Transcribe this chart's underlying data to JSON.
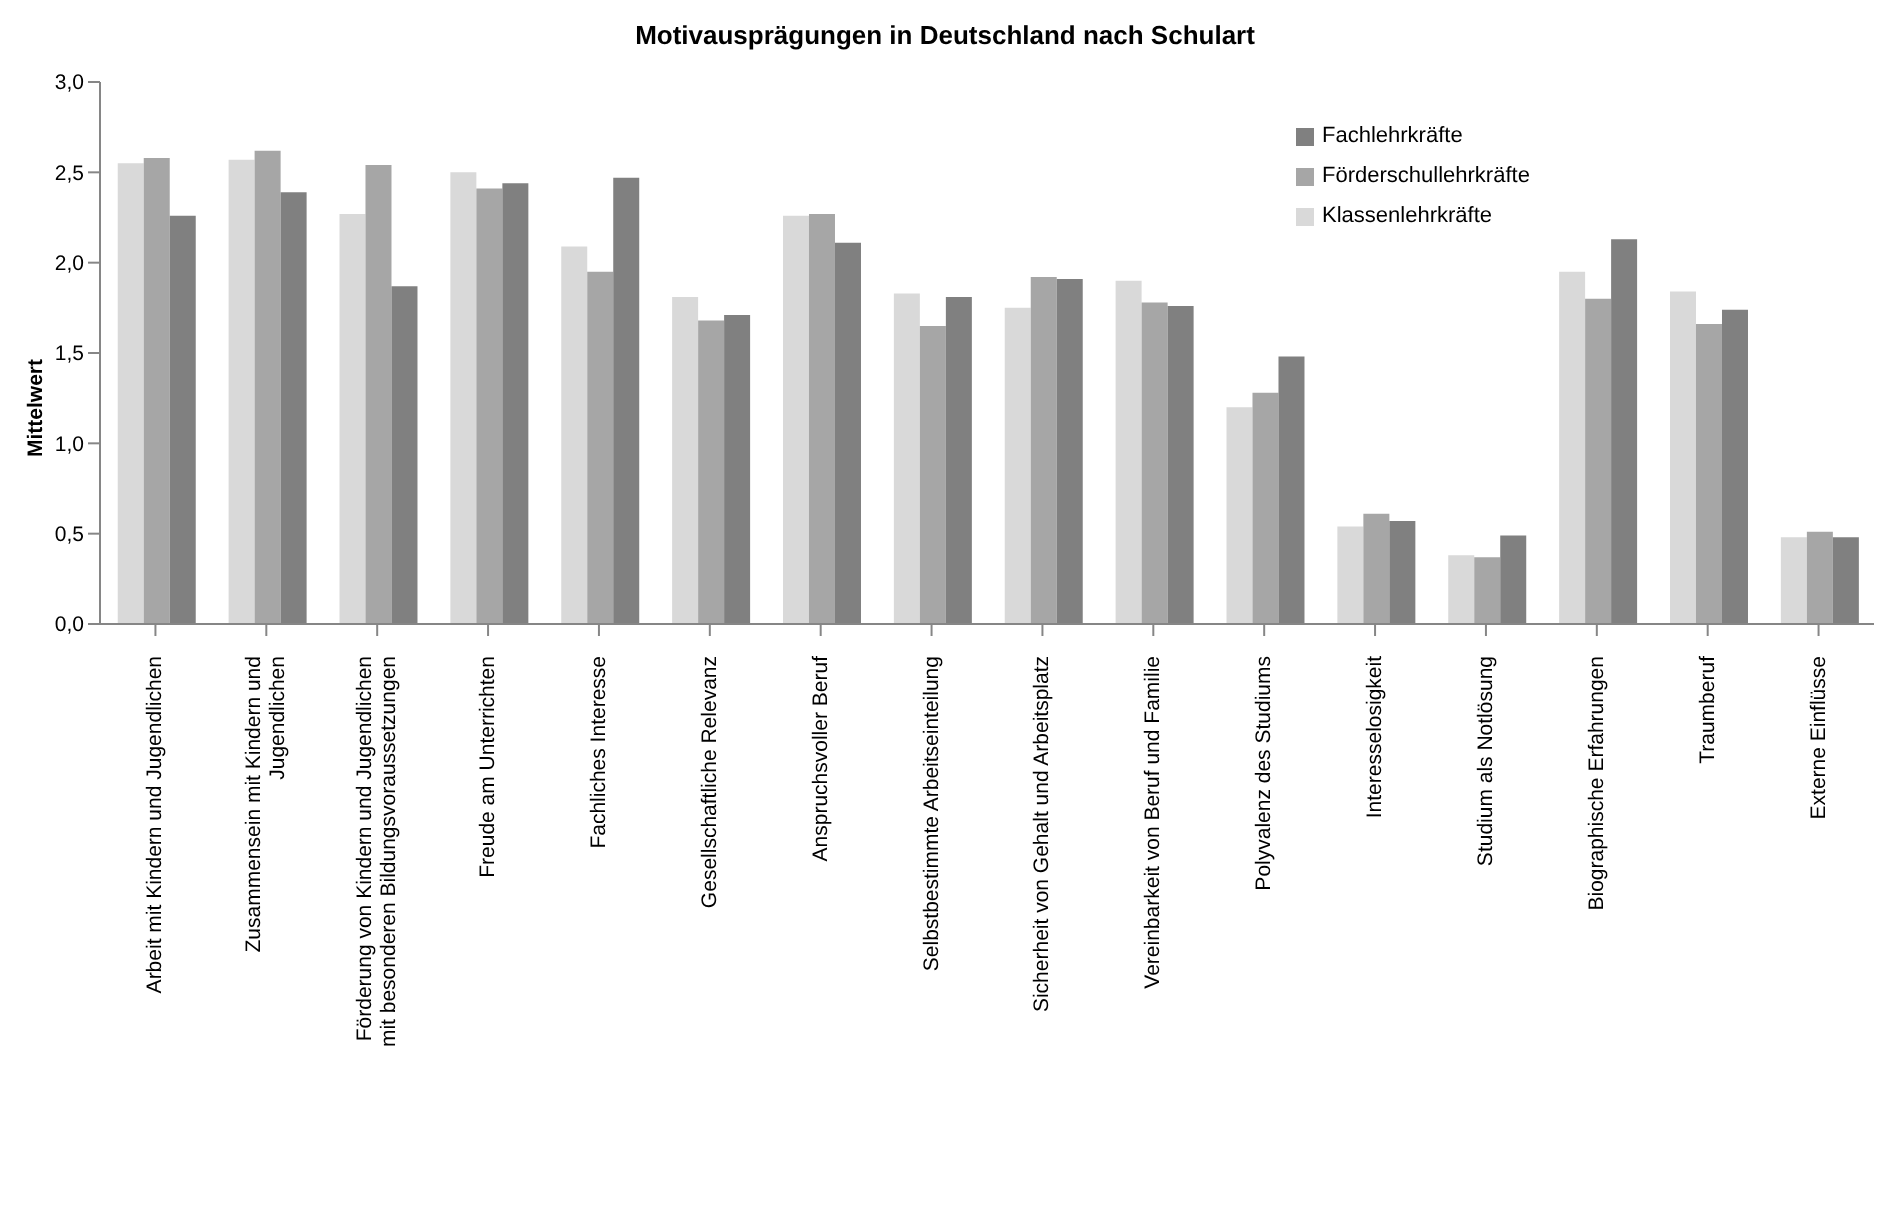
{
  "chart_data": {
    "type": "bar",
    "title": "Motivausprägungen in Deutschland nach Schulart",
    "ylabel": "Mittelwert",
    "categories": [
      "Arbeit mit Kindern und Jugendlichen",
      "Zusammensein mit Kindern und Jugendlichen",
      "Förderung von Kindern und Jugendlichen mit besonderen Bildungsvoraussetzungen",
      "Freude am Unterrichten",
      "Fachliches Interesse",
      "Gesellschaftliche Relevanz",
      "Anspruchsvoller Beruf",
      "Selbstbestimmte Arbeitseinteilung",
      "Sicherheit von Gehalt und Arbeitsplatz",
      "Vereinbarkeit von Beruf und Familie",
      "Polyvalenz des Studiums",
      "Interesselosigkeit",
      "Studium als Notlösung",
      "Biographische Erfahrungen",
      "Traumberuf",
      "Externe Einflüsse"
    ],
    "series": [
      {
        "name": "Klassenlehrkräfte",
        "color": "#d9d9d9",
        "values": [
          2.55,
          2.57,
          2.27,
          2.5,
          2.09,
          1.81,
          2.26,
          1.83,
          1.75,
          1.9,
          1.2,
          0.54,
          0.38,
          1.95,
          1.84,
          0.48
        ]
      },
      {
        "name": "Förderschullehrkräfte",
        "color": "#a6a6a6",
        "values": [
          2.58,
          2.62,
          2.54,
          2.41,
          1.95,
          1.68,
          2.27,
          1.65,
          1.92,
          1.78,
          1.28,
          0.61,
          0.37,
          1.8,
          1.66,
          0.51
        ]
      },
      {
        "name": "Fachlehrkräfte",
        "color": "#808080",
        "values": [
          2.26,
          2.39,
          1.87,
          2.44,
          2.47,
          1.71,
          2.11,
          1.81,
          1.91,
          1.76,
          1.48,
          0.57,
          0.49,
          2.13,
          1.74,
          0.48
        ]
      }
    ],
    "ylim": [
      0,
      3
    ],
    "yticks": [
      {
        "value": 0,
        "label": "0,0"
      },
      {
        "value": 0.5,
        "label": "0,5"
      },
      {
        "value": 1,
        "label": "1,0"
      },
      {
        "value": 1.5,
        "label": "1,5"
      },
      {
        "value": 2,
        "label": "2,0"
      },
      {
        "value": 2.5,
        "label": "2,5"
      },
      {
        "value": 3,
        "label": "3,0"
      }
    ],
    "grid": false,
    "legend": "top right"
  }
}
